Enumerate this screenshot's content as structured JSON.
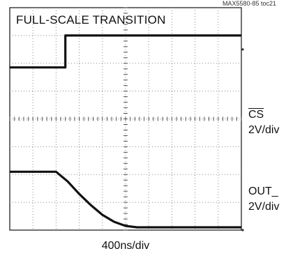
{
  "chart_data": {
    "type": "line",
    "id_code": "MAX5580-85 toc21",
    "title": "FULL-SCALE TRANSITION",
    "xlabel": "400ns/div",
    "x_divisions": 10,
    "y_divisions": 8,
    "grid": true,
    "series": [
      {
        "name": "CS",
        "scale": "2V/div",
        "x": [
          0,
          2.4,
          2.4,
          10
        ],
        "y": [
          -2.15,
          -2.15,
          -1.0,
          -1.0
        ]
      },
      {
        "name": "OUT_",
        "scale": "2V/div",
        "x": [
          0,
          2.0,
          2.5,
          3.0,
          3.5,
          4.0,
          4.5,
          5.0,
          5.5,
          10
        ],
        "y": [
          -5.9,
          -5.9,
          -6.25,
          -6.7,
          -7.1,
          -7.45,
          -7.7,
          -7.85,
          -7.9,
          -7.9
        ]
      }
    ]
  }
}
